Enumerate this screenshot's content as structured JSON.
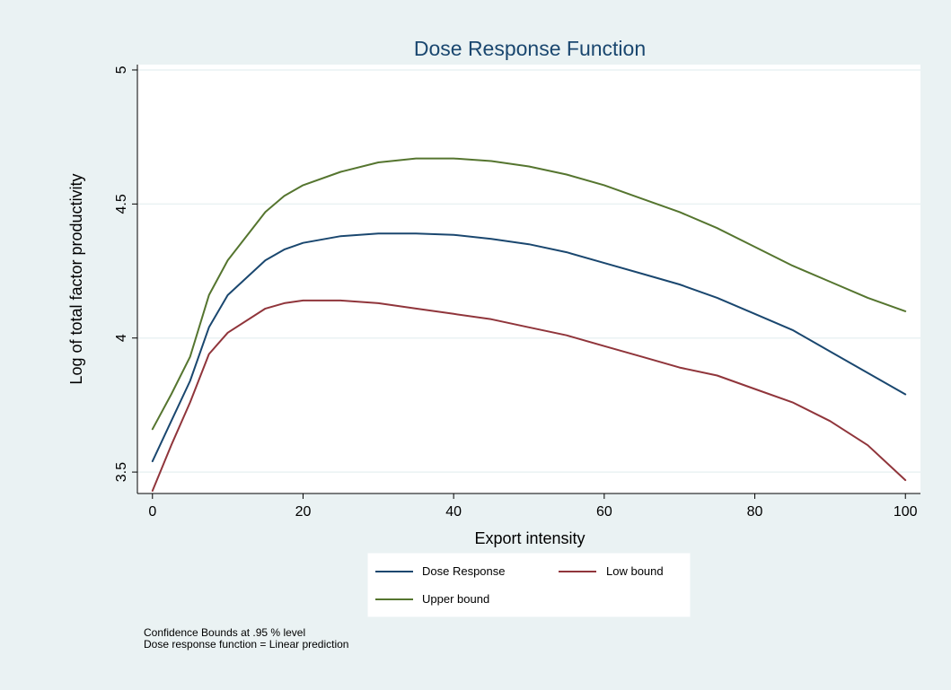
{
  "chart_data": {
    "type": "line",
    "title": "Dose Response Function",
    "xlabel": "Export intensity",
    "ylabel": "Log of total factor productivity",
    "xlim": [
      -2,
      102
    ],
    "ylim": [
      3.42,
      5.02
    ],
    "xticks": [
      0,
      20,
      40,
      60,
      80,
      100
    ],
    "yticks": [
      3.5,
      4,
      4.5,
      5
    ],
    "xtick_labels": [
      "0",
      "20",
      "40",
      "60",
      "80",
      "100"
    ],
    "ytick_labels": [
      "3.5",
      "4",
      "4.5",
      "5"
    ],
    "grid": true,
    "legend_position": "bottom",
    "x": [
      0,
      2.5,
      5,
      7.5,
      10,
      15,
      17.5,
      20,
      25,
      30,
      35,
      40,
      45,
      50,
      55,
      60,
      65,
      70,
      75,
      80,
      85,
      90,
      95,
      100
    ],
    "series": [
      {
        "name": "Dose Response",
        "color": "#1a476f",
        "values": [
          3.54,
          3.69,
          3.84,
          4.04,
          4.16,
          4.29,
          4.33,
          4.355,
          4.38,
          4.39,
          4.39,
          4.385,
          4.37,
          4.35,
          4.32,
          4.28,
          4.24,
          4.2,
          4.15,
          4.09,
          4.03,
          3.95,
          3.87,
          3.79
        ]
      },
      {
        "name": "Low bound",
        "color": "#90353b",
        "values": [
          3.43,
          3.6,
          3.76,
          3.94,
          4.02,
          4.11,
          4.13,
          4.14,
          4.14,
          4.13,
          4.11,
          4.09,
          4.07,
          4.04,
          4.01,
          3.97,
          3.93,
          3.89,
          3.86,
          3.81,
          3.76,
          3.69,
          3.6,
          3.47
        ]
      },
      {
        "name": "Upper bound",
        "color": "#55752f",
        "values": [
          3.66,
          3.79,
          3.93,
          4.16,
          4.29,
          4.47,
          4.53,
          4.57,
          4.62,
          4.655,
          4.67,
          4.67,
          4.66,
          4.64,
          4.61,
          4.57,
          4.52,
          4.47,
          4.41,
          4.34,
          4.27,
          4.21,
          4.15,
          4.1
        ]
      }
    ]
  },
  "notes": {
    "line1": "Confidence Bounds at .95 % level",
    "line2": "Dose response function = Linear prediction"
  }
}
